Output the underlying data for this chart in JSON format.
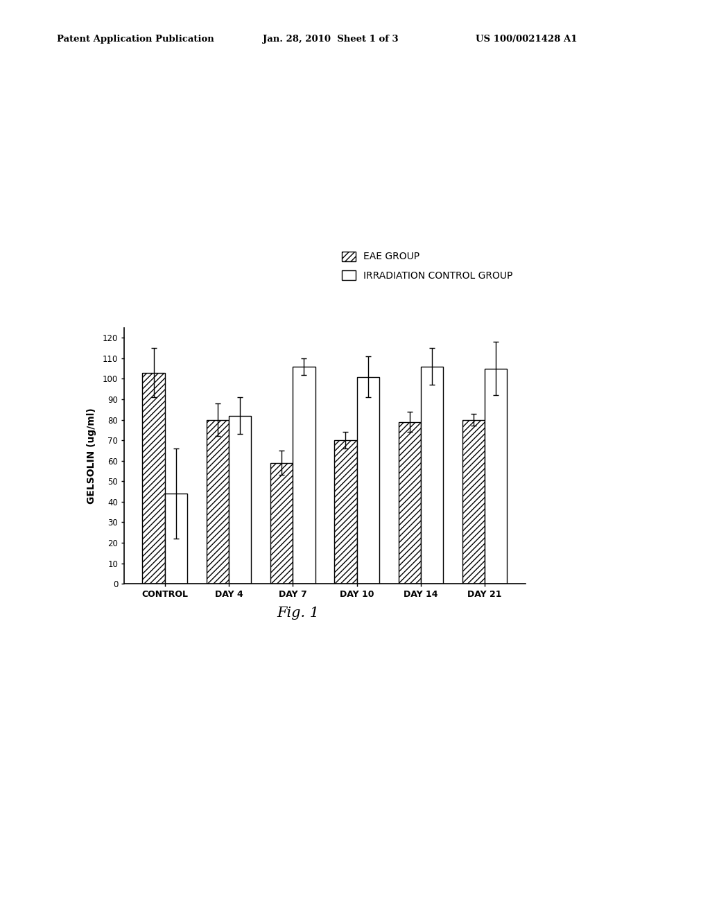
{
  "categories": [
    "CONTROL",
    "DAY 4",
    "DAY 7",
    "DAY 10",
    "DAY 14",
    "DAY 21"
  ],
  "eae_values": [
    103,
    80,
    59,
    70,
    79,
    80
  ],
  "eae_errors": [
    12,
    8,
    6,
    4,
    5,
    3
  ],
  "ctrl_values": [
    44,
    82,
    106,
    101,
    106,
    105
  ],
  "ctrl_errors": [
    22,
    9,
    4,
    10,
    9,
    13
  ],
  "ylabel": "GELSOLIN (ug/ml)",
  "fig_label": "Fig. 1",
  "legend_eae": "EAE GROUP",
  "legend_ctrl": "IRRADIATION CONTROL GROUP",
  "ylim": [
    0,
    125
  ],
  "yticks": [
    0,
    10,
    20,
    30,
    40,
    50,
    60,
    70,
    80,
    90,
    100,
    110,
    120
  ],
  "bar_width": 0.35,
  "header_left": "Patent Application Publication",
  "header_center": "Jan. 28, 2010  Sheet 1 of 3",
  "header_right": "US 100/0021428 A1",
  "background_color": "#ffffff"
}
